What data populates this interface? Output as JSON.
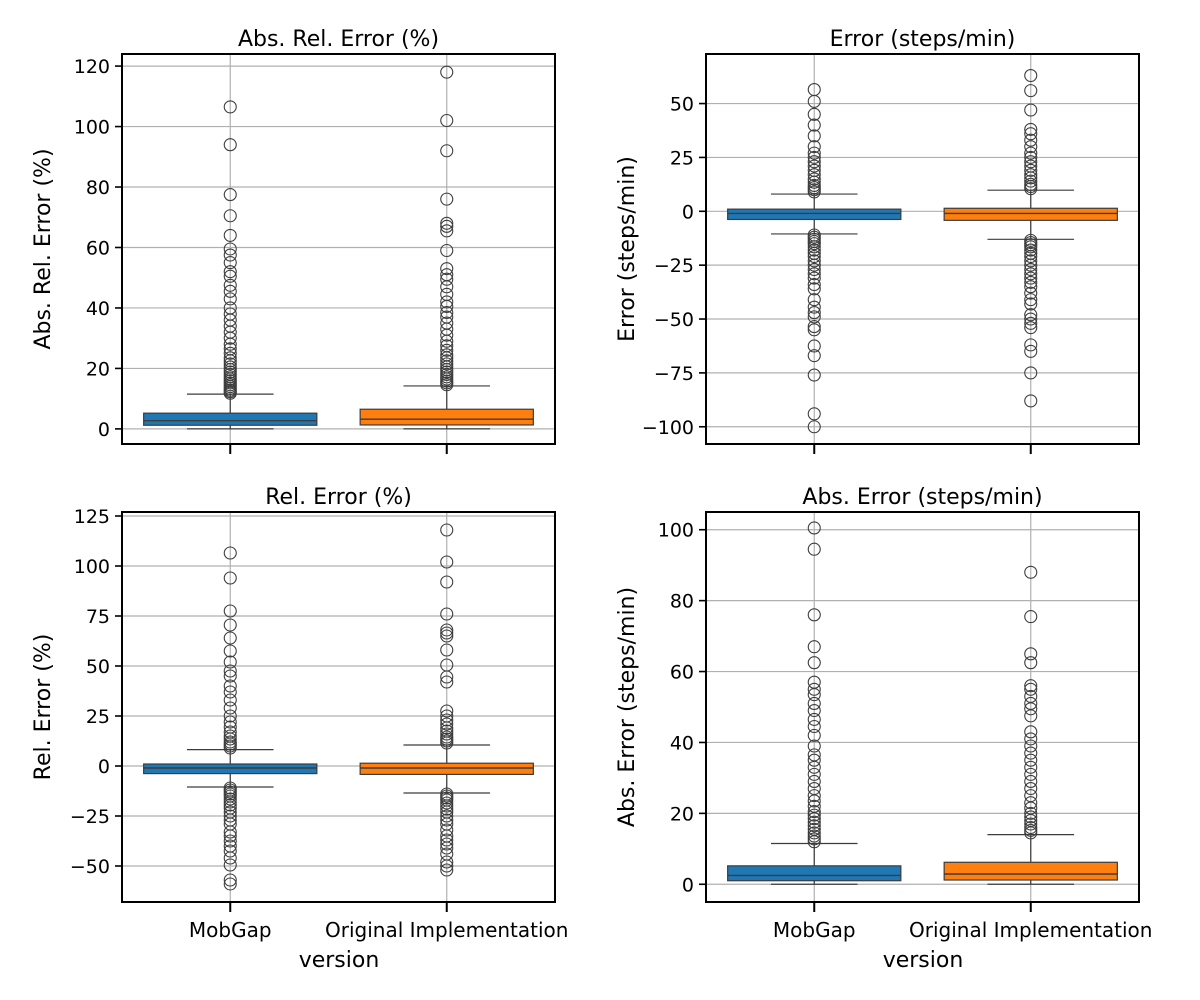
{
  "figure": {
    "shared_xlabel": "version"
  },
  "chart_data": [
    {
      "type": "box",
      "title": "Abs. Rel. Error (%)",
      "xlabel": "",
      "ylabel": "Abs. Rel. Error (%)",
      "ylim": [
        -5,
        124
      ],
      "yticks": [
        0,
        20,
        40,
        60,
        80,
        100,
        120
      ],
      "ytick_labels": [
        "0",
        "20",
        "40",
        "60",
        "80",
        "100",
        "120"
      ],
      "categories": [
        "MobGap",
        "Original Implementation"
      ],
      "show_xtick_labels": false,
      "grid": true,
      "boxes": [
        {
          "name": "MobGap",
          "color": "#1f77b4",
          "whisker_low": 0,
          "q1": 1.2,
          "median": 2.7,
          "q3": 5.2,
          "whisker_high": 11.5,
          "outliers": [
            11.8,
            12.3,
            12.8,
            13.4,
            14.0,
            14.6,
            15.2,
            15.9,
            16.5,
            17.2,
            18.0,
            18.8,
            19.6,
            20.5,
            21.5,
            22.5,
            23.5,
            25.0,
            26.5,
            28.0,
            30.0,
            32.0,
            34.0,
            36.0,
            38.0,
            40.0,
            43.0,
            45.5,
            47.5,
            50.5,
            52.0,
            55.0,
            57.5,
            59.5,
            64.0,
            70.5,
            77.5,
            94.0,
            106.5
          ]
        },
        {
          "name": "Original Implementation",
          "color": "#ff7f0e",
          "whisker_low": 0,
          "q1": 1.3,
          "median": 3.2,
          "q3": 6.5,
          "whisker_high": 14.2,
          "outliers": [
            14.6,
            15.2,
            15.8,
            16.5,
            17.2,
            18.0,
            18.8,
            19.6,
            20.5,
            21.5,
            22.5,
            23.5,
            24.5,
            26.0,
            27.5,
            29.0,
            31.0,
            33.0,
            35.0,
            37.0,
            38.5,
            40.5,
            42.0,
            44.5,
            47.0,
            49.5,
            51.0,
            53.0,
            59.0,
            65.5,
            67.0,
            68.0,
            76.0,
            92.0,
            102.0,
            118.0
          ]
        }
      ]
    },
    {
      "type": "box",
      "title": "Error (steps/min)",
      "xlabel": "",
      "ylabel": "Error (steps/min)",
      "ylim": [
        -108,
        73
      ],
      "yticks": [
        -100,
        -75,
        -50,
        -25,
        0,
        25,
        50
      ],
      "ytick_labels": [
        "−100",
        "−75",
        "−50",
        "−25",
        "0",
        "25",
        "50"
      ],
      "categories": [
        "MobGap",
        "Original Implementation"
      ],
      "show_xtick_labels": false,
      "grid": true,
      "boxes": [
        {
          "name": "MobGap",
          "color": "#1f77b4",
          "whisker_low": -10.5,
          "q1": -3.8,
          "median": -1.0,
          "q3": 1.0,
          "whisker_high": 8.0,
          "outliers": [
            9.0,
            10.0,
            11.0,
            12.0,
            13.5,
            15.0,
            17.0,
            19.0,
            21.0,
            23.0,
            25.0,
            27.0,
            30.0,
            35.0,
            40.0,
            45.0,
            51.0,
            56.5,
            -11.0,
            -12.0,
            -13.0,
            -14.0,
            -15.0,
            -16.5,
            -18.0,
            -19.5,
            -21.0,
            -23.0,
            -25.0,
            -27.0,
            -29.0,
            -31.0,
            -34.0,
            -36.0,
            -41.0,
            -44.5,
            -47.0,
            -49.0,
            -53.5,
            -55.0,
            -62.5,
            -67.0,
            -76.0,
            -94.0,
            -100.0
          ]
        },
        {
          "name": "Original Implementation",
          "color": "#ff7f0e",
          "whisker_low": -13.0,
          "q1": -4.2,
          "median": -1.0,
          "q3": 1.4,
          "whisker_high": 9.8,
          "outliers": [
            10.5,
            11.5,
            12.5,
            14.0,
            15.5,
            17.0,
            19.0,
            21.0,
            23.0,
            25.0,
            27.0,
            30.0,
            33.0,
            36.0,
            38.0,
            47.0,
            56.0,
            63.0,
            -13.5,
            -14.5,
            -15.5,
            -16.5,
            -18.0,
            -19.5,
            -21.0,
            -23.0,
            -25.0,
            -27.0,
            -29.0,
            -31.0,
            -33.0,
            -35.0,
            -38.0,
            -41.0,
            -43.0,
            -48.0,
            -50.0,
            -52.0,
            -54.0,
            -62.0,
            -65.0,
            -75.0,
            -88.0
          ]
        }
      ]
    },
    {
      "type": "box",
      "title": "Rel. Error (%)",
      "xlabel": "version",
      "ylabel": "Rel. Error (%)",
      "ylim": [
        -68,
        127
      ],
      "yticks": [
        -50,
        -25,
        0,
        25,
        50,
        75,
        100,
        125
      ],
      "ytick_labels": [
        "−50",
        "−25",
        "0",
        "25",
        "50",
        "75",
        "100",
        "125"
      ],
      "categories": [
        "MobGap",
        "Original Implementation"
      ],
      "show_xtick_labels": true,
      "grid": true,
      "boxes": [
        {
          "name": "MobGap",
          "color": "#1f77b4",
          "whisker_low": -10.5,
          "q1": -3.8,
          "median": -1.0,
          "q3": 1.0,
          "whisker_high": 8.2,
          "outliers": [
            9.0,
            10.0,
            11.0,
            12.0,
            13.5,
            15.0,
            17.0,
            19.5,
            22.0,
            25.0,
            29.0,
            33.0,
            37.0,
            40.0,
            45.0,
            47.5,
            52.0,
            57.5,
            64.0,
            70.5,
            77.5,
            94.0,
            106.5,
            -11.0,
            -12.0,
            -13.0,
            -14.0,
            -15.0,
            -16.5,
            -18.0,
            -19.5,
            -21.0,
            -23.0,
            -25.0,
            -27.0,
            -29.0,
            -33.0,
            -35.0,
            -37.5,
            -40.0,
            -42.5,
            -46.0,
            -49.5,
            -57.0,
            -59.0
          ]
        },
        {
          "name": "Original Implementation",
          "color": "#ff7f0e",
          "whisker_low": -13.5,
          "q1": -4.2,
          "median": -1.0,
          "q3": 1.4,
          "whisker_high": 10.5,
          "outliers": [
            11.5,
            12.5,
            13.5,
            14.5,
            16.0,
            17.5,
            19.0,
            21.0,
            23.0,
            25.0,
            27.5,
            42.0,
            44.5,
            50.5,
            58.0,
            65.0,
            66.5,
            68.0,
            76.0,
            92.0,
            102.0,
            118.0,
            -14.0,
            -15.0,
            -16.0,
            -17.0,
            -18.5,
            -20.0,
            -21.5,
            -23.0,
            -25.0,
            -27.0,
            -29.0,
            -32.0,
            -35.0,
            -37.0,
            -39.0,
            -41.0,
            -44.0,
            -48.0,
            -50.0,
            -52.0
          ]
        }
      ]
    },
    {
      "type": "box",
      "title": "Abs. Error (steps/min)",
      "xlabel": "version",
      "ylabel": "Abs. Error (steps/min)",
      "ylim": [
        -5,
        105
      ],
      "yticks": [
        0,
        20,
        40,
        60,
        80,
        100
      ],
      "ytick_labels": [
        "0",
        "20",
        "40",
        "60",
        "80",
        "100"
      ],
      "categories": [
        "MobGap",
        "Original Implementation"
      ],
      "show_xtick_labels": true,
      "grid": true,
      "boxes": [
        {
          "name": "MobGap",
          "color": "#1f77b4",
          "whisker_low": 0,
          "q1": 1.0,
          "median": 2.5,
          "q3": 5.2,
          "whisker_high": 11.5,
          "outliers": [
            12.0,
            12.8,
            13.6,
            14.5,
            15.5,
            16.5,
            17.5,
            18.5,
            19.5,
            20.5,
            22.0,
            23.5,
            25.0,
            27.0,
            29.0,
            31.0,
            33.0,
            35.0,
            36.5,
            39.0,
            42.0,
            44.5,
            46.5,
            49.0,
            51.0,
            53.5,
            55.0,
            57.0,
            62.5,
            67.0,
            76.0,
            94.5,
            100.5
          ]
        },
        {
          "name": "Original Implementation",
          "color": "#ff7f0e",
          "whisker_low": 0,
          "q1": 1.2,
          "median": 2.9,
          "q3": 6.2,
          "whisker_high": 14.0,
          "outliers": [
            14.5,
            15.2,
            16.0,
            17.0,
            18.0,
            19.0,
            20.0,
            21.5,
            23.0,
            25.0,
            27.0,
            29.0,
            31.0,
            33.0,
            35.0,
            37.0,
            39.0,
            41.0,
            43.0,
            47.5,
            49.5,
            51.0,
            53.0,
            55.0,
            56.0,
            62.5,
            65.0,
            75.5,
            88.0
          ]
        }
      ]
    }
  ]
}
